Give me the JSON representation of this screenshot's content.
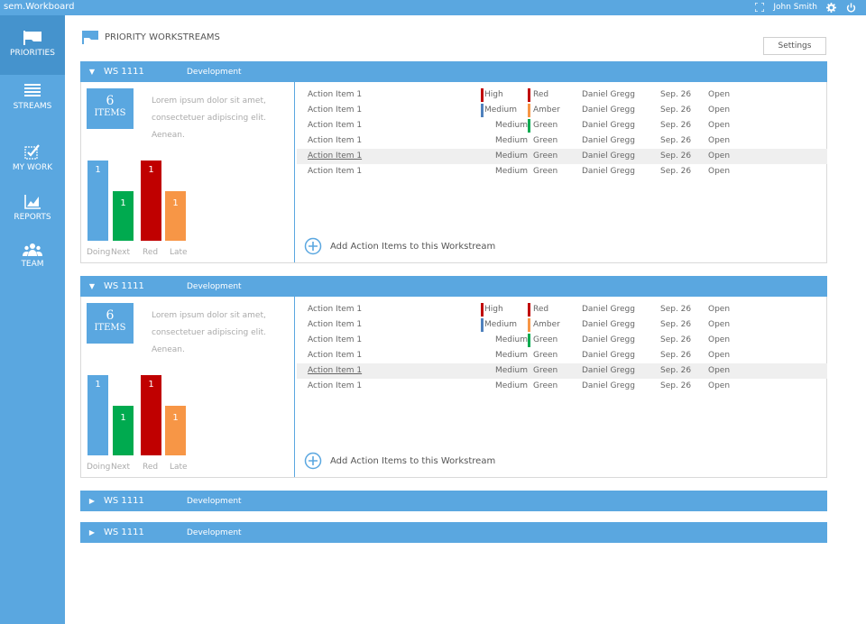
{
  "app": {
    "title": "sem.Workboard"
  },
  "topbar": {
    "user": "John Smith"
  },
  "colors": {
    "brand": "#5aa7e0",
    "green": "#00aa4f",
    "red": "#c00000",
    "orange": "#f79646"
  },
  "nav": [
    {
      "label": "PRIORITIES",
      "icon": "flag-icon"
    },
    {
      "label": "STREAMS",
      "icon": "list-icon"
    },
    {
      "label": "MY WORK",
      "icon": "checkbox-icon"
    },
    {
      "label": "REPORTS",
      "icon": "chart-icon"
    },
    {
      "label": "TEAM",
      "icon": "team-icon"
    }
  ],
  "page": {
    "title": "PRIORITY WORKSTREAMS",
    "settings_label": "Settings"
  },
  "workstreams": [
    {
      "id": "WS 1111",
      "category": "Development",
      "expanded": true,
      "count": "6",
      "count_label": "ITEMS",
      "description": "Lorem ipsum dolor sit amet, consectetuer adipiscing elit. Aenean.",
      "bars": [
        {
          "label": "Doing",
          "value": "1"
        },
        {
          "label": "Next",
          "value": "1"
        },
        {
          "label": "Red",
          "value": "1"
        },
        {
          "label": "Late",
          "value": "1"
        }
      ],
      "items": [
        {
          "title": "Action Item 1",
          "priority": "High",
          "status": "Red",
          "owner": "Daniel Gregg",
          "date": "Sep. 26",
          "state": "Open"
        },
        {
          "title": "Action Item 1",
          "priority": "Medium",
          "status": "Amber",
          "owner": "Daniel Gregg",
          "date": "Sep. 26",
          "state": "Open"
        },
        {
          "title": "Action Item 1",
          "priority": "Medium",
          "status": "Green",
          "owner": "Daniel Gregg",
          "date": "Sep. 26",
          "state": "Open"
        },
        {
          "title": "Action Item 1",
          "priority": "Medium",
          "status": "Green",
          "owner": "Daniel Gregg",
          "date": "Sep. 26",
          "state": "Open"
        },
        {
          "title": "Action Item 1",
          "priority": "Medium",
          "status": "Green",
          "owner": "Daniel Gregg",
          "date": "Sep. 26",
          "state": "Open"
        },
        {
          "title": "Action Item 1",
          "priority": "Medium",
          "status": "Green",
          "owner": "Daniel Gregg",
          "date": "Sep. 26",
          "state": "Open"
        }
      ],
      "add_label": "Add Action Items to this Workstream"
    },
    {
      "id": "WS 1111",
      "category": "Development",
      "expanded": true,
      "count": "6",
      "count_label": "ITEMS",
      "description": "Lorem ipsum dolor sit amet, consectetuer adipiscing elit. Aenean.",
      "bars": [
        {
          "label": "Doing",
          "value": "1"
        },
        {
          "label": "Next",
          "value": "1"
        },
        {
          "label": "Red",
          "value": "1"
        },
        {
          "label": "Late",
          "value": "1"
        }
      ],
      "items": [
        {
          "title": "Action Item 1",
          "priority": "High",
          "status": "Red",
          "owner": "Daniel Gregg",
          "date": "Sep. 26",
          "state": "Open"
        },
        {
          "title": "Action Item 1",
          "priority": "Medium",
          "status": "Amber",
          "owner": "Daniel Gregg",
          "date": "Sep. 26",
          "state": "Open"
        },
        {
          "title": "Action Item 1",
          "priority": "Medium",
          "status": "Green",
          "owner": "Daniel Gregg",
          "date": "Sep. 26",
          "state": "Open"
        },
        {
          "title": "Action Item 1",
          "priority": "Medium",
          "status": "Green",
          "owner": "Daniel Gregg",
          "date": "Sep. 26",
          "state": "Open"
        },
        {
          "title": "Action Item 1",
          "priority": "Medium",
          "status": "Green",
          "owner": "Daniel Gregg",
          "date": "Sep. 26",
          "state": "Open"
        },
        {
          "title": "Action Item 1",
          "priority": "Medium",
          "status": "Green",
          "owner": "Daniel Gregg",
          "date": "Sep. 26",
          "state": "Open"
        }
      ],
      "add_label": "Add Action Items to this Workstream"
    },
    {
      "id": "WS 1111",
      "category": "Development",
      "expanded": false
    },
    {
      "id": "WS 1111",
      "category": "Development",
      "expanded": false
    }
  ]
}
